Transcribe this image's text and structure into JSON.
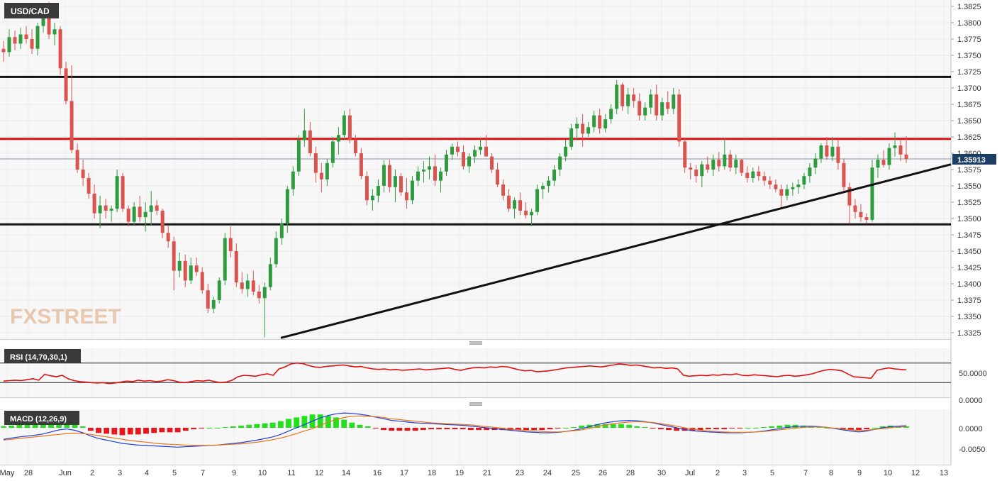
{
  "symbol": "USD/CAD",
  "watermark": "FXSTREET",
  "current_price": "1.35913",
  "colors": {
    "up": "#2e9c3e",
    "down": "#d9534f",
    "resistance": "#e01010",
    "level": "#111111",
    "rsi": "#e01010",
    "macd": "#1f3fdc",
    "signal": "#e8751a",
    "hist_pos": "#22e01a",
    "hist_neg": "#e8161b"
  },
  "rsi": {
    "label": "RSI (14,70,30,1)",
    "ticks": [
      "50.0000",
      "0.0000"
    ]
  },
  "macd": {
    "label": "MACD (12,26,9)",
    "ticks": [
      "0.0000",
      "-0.0050"
    ]
  },
  "chart_data": {
    "type": "candlestick",
    "title": "USD/CAD",
    "ylim": [
      1.3312,
      1.3835
    ],
    "y_ticks": [
      "1.3825",
      "1.3800",
      "1.3775",
      "1.3750",
      "1.3725",
      "1.3700",
      "1.3675",
      "1.3650",
      "1.3625",
      "1.3600",
      "1.3575",
      "1.3550",
      "1.3525",
      "1.3500",
      "1.3475",
      "1.3450",
      "1.3425",
      "1.3400",
      "1.3375",
      "1.3350",
      "1.3325"
    ],
    "x_ticks": [
      "May",
      "28",
      "Jun",
      "2",
      "3",
      "4",
      "5",
      "7",
      "9",
      "10",
      "11",
      "12",
      "14",
      "16",
      "17",
      "18",
      "19",
      "21",
      "23",
      "24",
      "25",
      "26",
      "28",
      "30",
      "Jul",
      "2",
      "3",
      "5",
      "7",
      "8",
      "9",
      "10",
      "12",
      "13"
    ],
    "horizontal_levels": [
      {
        "kind": "level",
        "value": 1.3717
      },
      {
        "kind": "resistance",
        "value": 1.3622
      },
      {
        "kind": "level",
        "value": 1.3491
      }
    ],
    "trendline": {
      "from": {
        "date": "10 Jun",
        "value": 1.3317
      },
      "to": {
        "date": "13 Jul",
        "value": 1.3583
      }
    },
    "candles": [
      [
        1.376,
        1.3772,
        1.374,
        1.3755
      ],
      [
        1.3755,
        1.379,
        1.3748,
        1.3778
      ],
      [
        1.3778,
        1.3788,
        1.3758,
        1.3768
      ],
      [
        1.3768,
        1.3792,
        1.376,
        1.3782
      ],
      [
        1.3782,
        1.3795,
        1.3768,
        1.3775
      ],
      [
        1.3775,
        1.379,
        1.3752,
        1.376
      ],
      [
        1.376,
        1.38,
        1.375,
        1.3795
      ],
      [
        1.3795,
        1.383,
        1.3785,
        1.3828
      ],
      [
        1.3828,
        1.3832,
        1.3775,
        1.3782
      ],
      [
        1.3782,
        1.38,
        1.3765,
        1.379
      ],
      [
        1.379,
        1.3795,
        1.372,
        1.373
      ],
      [
        1.373,
        1.374,
        1.3675,
        1.368
      ],
      [
        1.368,
        1.3735,
        1.36,
        1.3605
      ],
      [
        1.3605,
        1.3615,
        1.357,
        1.3575
      ],
      [
        1.3575,
        1.359,
        1.355,
        1.3562
      ],
      [
        1.3562,
        1.357,
        1.353,
        1.3538
      ],
      [
        1.3538,
        1.3552,
        1.35,
        1.3508
      ],
      [
        1.3508,
        1.3535,
        1.3485,
        1.352
      ],
      [
        1.352,
        1.353,
        1.35,
        1.3512
      ],
      [
        1.3512,
        1.352,
        1.3495,
        1.3515
      ],
      [
        1.3515,
        1.3575,
        1.351,
        1.3565
      ],
      [
        1.3565,
        1.357,
        1.351,
        1.3515
      ],
      [
        1.3515,
        1.352,
        1.3488,
        1.3495
      ],
      [
        1.3495,
        1.3525,
        1.349,
        1.3518
      ],
      [
        1.3518,
        1.3535,
        1.3495,
        1.3502
      ],
      [
        1.3502,
        1.3525,
        1.348,
        1.351
      ],
      [
        1.351,
        1.3542,
        1.349,
        1.352
      ],
      [
        1.352,
        1.3528,
        1.3505,
        1.3512
      ],
      [
        1.3512,
        1.3515,
        1.347,
        1.3478
      ],
      [
        1.3478,
        1.349,
        1.3455,
        1.3465
      ],
      [
        1.3465,
        1.3472,
        1.339,
        1.342
      ],
      [
        1.342,
        1.3448,
        1.341,
        1.3435
      ],
      [
        1.3435,
        1.3445,
        1.3395,
        1.3405
      ],
      [
        1.3405,
        1.344,
        1.34,
        1.3428
      ],
      [
        1.3428,
        1.344,
        1.3412,
        1.3418
      ],
      [
        1.3418,
        1.3425,
        1.3385,
        1.339
      ],
      [
        1.339,
        1.34,
        1.3355,
        1.3362
      ],
      [
        1.3362,
        1.338,
        1.3355,
        1.3375
      ],
      [
        1.3375,
        1.341,
        1.337,
        1.3405
      ],
      [
        1.3405,
        1.3478,
        1.3398,
        1.347
      ],
      [
        1.347,
        1.3488,
        1.344,
        1.345
      ],
      [
        1.345,
        1.3462,
        1.3395,
        1.3402
      ],
      [
        1.3402,
        1.3418,
        1.3385,
        1.3392
      ],
      [
        1.3392,
        1.3415,
        1.338,
        1.3405
      ],
      [
        1.3405,
        1.342,
        1.3382,
        1.3388
      ],
      [
        1.3388,
        1.3398,
        1.337,
        1.3378
      ],
      [
        1.3378,
        1.3402,
        1.3318,
        1.3395
      ],
      [
        1.3395,
        1.344,
        1.339,
        1.343
      ],
      [
        1.343,
        1.348,
        1.3425,
        1.347
      ],
      [
        1.347,
        1.35,
        1.346,
        1.3492
      ],
      [
        1.3492,
        1.355,
        1.3478,
        1.3545
      ],
      [
        1.3545,
        1.358,
        1.3535,
        1.3572
      ],
      [
        1.3572,
        1.3628,
        1.3565,
        1.362
      ],
      [
        1.362,
        1.3668,
        1.361,
        1.3635
      ],
      [
        1.3635,
        1.3648,
        1.3595,
        1.36
      ],
      [
        1.36,
        1.361,
        1.3555,
        1.357
      ],
      [
        1.357,
        1.3585,
        1.354,
        1.356
      ],
      [
        1.356,
        1.3592,
        1.355,
        1.3585
      ],
      [
        1.3585,
        1.3625,
        1.3578,
        1.3618
      ],
      [
        1.3618,
        1.364,
        1.3598,
        1.3628
      ],
      [
        1.3628,
        1.3665,
        1.362,
        1.3658
      ],
      [
        1.3658,
        1.3668,
        1.3615,
        1.362
      ],
      [
        1.362,
        1.3628,
        1.3595,
        1.36
      ],
      [
        1.36,
        1.3608,
        1.356,
        1.3565
      ],
      [
        1.3565,
        1.3572,
        1.352,
        1.3528
      ],
      [
        1.3528,
        1.3545,
        1.3512,
        1.3535
      ],
      [
        1.3535,
        1.356,
        1.3525,
        1.355
      ],
      [
        1.355,
        1.359,
        1.354,
        1.3582
      ],
      [
        1.3582,
        1.359,
        1.354,
        1.3548
      ],
      [
        1.3548,
        1.3575,
        1.3525,
        1.3565
      ],
      [
        1.3565,
        1.357,
        1.3535,
        1.354
      ],
      [
        1.354,
        1.3562,
        1.3515,
        1.3528
      ],
      [
        1.3528,
        1.3565,
        1.3522,
        1.3558
      ],
      [
        1.3558,
        1.358,
        1.355,
        1.3572
      ],
      [
        1.3572,
        1.3588,
        1.3555,
        1.3575
      ],
      [
        1.3575,
        1.3595,
        1.356,
        1.358
      ],
      [
        1.358,
        1.3598,
        1.355,
        1.3558
      ],
      [
        1.3558,
        1.3578,
        1.354,
        1.3572
      ],
      [
        1.3572,
        1.3605,
        1.3565,
        1.3598
      ],
      [
        1.3598,
        1.3615,
        1.359,
        1.361
      ],
      [
        1.361,
        1.3618,
        1.3595,
        1.3602
      ],
      [
        1.3602,
        1.3612,
        1.3575,
        1.358
      ],
      [
        1.358,
        1.36,
        1.357,
        1.3595
      ],
      [
        1.3595,
        1.3612,
        1.3585,
        1.3605
      ],
      [
        1.3605,
        1.3622,
        1.3598,
        1.361
      ],
      [
        1.361,
        1.3628,
        1.36,
        1.3595
      ],
      [
        1.3595,
        1.36,
        1.357,
        1.3575
      ],
      [
        1.3575,
        1.3585,
        1.3548,
        1.3552
      ],
      [
        1.3552,
        1.356,
        1.3528,
        1.3535
      ],
      [
        1.3535,
        1.3545,
        1.351,
        1.3515
      ],
      [
        1.3515,
        1.3532,
        1.35,
        1.3528
      ],
      [
        1.3528,
        1.354,
        1.3505,
        1.3512
      ],
      [
        1.3512,
        1.3525,
        1.35,
        1.3505
      ],
      [
        1.3505,
        1.3515,
        1.3488,
        1.351
      ],
      [
        1.351,
        1.3552,
        1.3505,
        1.3545
      ],
      [
        1.3545,
        1.3555,
        1.353,
        1.355
      ],
      [
        1.355,
        1.3565,
        1.354,
        1.3558
      ],
      [
        1.3558,
        1.3582,
        1.355,
        1.3575
      ],
      [
        1.3575,
        1.36,
        1.3565,
        1.3595
      ],
      [
        1.3595,
        1.362,
        1.3588,
        1.361
      ],
      [
        1.361,
        1.3645,
        1.3605,
        1.3638
      ],
      [
        1.3638,
        1.3655,
        1.362,
        1.3645
      ],
      [
        1.3645,
        1.366,
        1.361,
        1.363
      ],
      [
        1.363,
        1.3648,
        1.3625,
        1.364
      ],
      [
        1.364,
        1.3665,
        1.3632,
        1.3658
      ],
      [
        1.3658,
        1.3668,
        1.363,
        1.3638
      ],
      [
        1.3638,
        1.366,
        1.3632,
        1.3652
      ],
      [
        1.3652,
        1.3675,
        1.3645,
        1.3668
      ],
      [
        1.3668,
        1.3712,
        1.366,
        1.3705
      ],
      [
        1.3705,
        1.3708,
        1.3665,
        1.3672
      ],
      [
        1.3672,
        1.37,
        1.366,
        1.369
      ],
      [
        1.369,
        1.37,
        1.367,
        1.368
      ],
      [
        1.368,
        1.3692,
        1.365,
        1.3658
      ],
      [
        1.3658,
        1.3678,
        1.365,
        1.367
      ],
      [
        1.367,
        1.3698,
        1.366,
        1.369
      ],
      [
        1.369,
        1.3705,
        1.365,
        1.3658
      ],
      [
        1.3658,
        1.3685,
        1.365,
        1.3678
      ],
      [
        1.3678,
        1.3695,
        1.366,
        1.3668
      ],
      [
        1.3668,
        1.37,
        1.366,
        1.369
      ],
      [
        1.369,
        1.3698,
        1.361,
        1.3618
      ],
      [
        1.3618,
        1.3622,
        1.357,
        1.3578
      ],
      [
        1.3578,
        1.3585,
        1.356,
        1.3575
      ],
      [
        1.3575,
        1.3582,
        1.3555,
        1.3565
      ],
      [
        1.3565,
        1.3588,
        1.3548,
        1.3583
      ],
      [
        1.3583,
        1.3595,
        1.357,
        1.3575
      ],
      [
        1.3575,
        1.3598,
        1.3565,
        1.359
      ],
      [
        1.359,
        1.3602,
        1.3572,
        1.358
      ],
      [
        1.358,
        1.3622,
        1.3575,
        1.3598
      ],
      [
        1.3598,
        1.3605,
        1.3572,
        1.3578
      ],
      [
        1.3578,
        1.3598,
        1.3568,
        1.359
      ],
      [
        1.359,
        1.3592,
        1.3565,
        1.357
      ],
      [
        1.357,
        1.358,
        1.3555,
        1.3562
      ],
      [
        1.3562,
        1.3578,
        1.3555,
        1.3572
      ],
      [
        1.3572,
        1.358,
        1.3558,
        1.3565
      ],
      [
        1.3565,
        1.3572,
        1.355,
        1.3558
      ],
      [
        1.3558,
        1.3565,
        1.3545,
        1.3552
      ],
      [
        1.3552,
        1.356,
        1.354,
        1.3545
      ],
      [
        1.3545,
        1.3552,
        1.3518,
        1.3535
      ],
      [
        1.3535,
        1.3552,
        1.3528,
        1.3545
      ],
      [
        1.3545,
        1.3555,
        1.3535,
        1.3548
      ],
      [
        1.3548,
        1.356,
        1.3538,
        1.3552
      ],
      [
        1.3552,
        1.357,
        1.3545,
        1.3565
      ],
      [
        1.3565,
        1.3585,
        1.3555,
        1.3578
      ],
      [
        1.3578,
        1.36,
        1.3568,
        1.3592
      ],
      [
        1.3592,
        1.3615,
        1.3585,
        1.3612
      ],
      [
        1.3612,
        1.3625,
        1.359,
        1.3595
      ],
      [
        1.3595,
        1.3625,
        1.3588,
        1.361
      ],
      [
        1.361,
        1.362,
        1.3575,
        1.3585
      ],
      [
        1.3585,
        1.3592,
        1.354,
        1.3548
      ],
      [
        1.3548,
        1.3555,
        1.3492,
        1.352
      ],
      [
        1.352,
        1.353,
        1.35,
        1.351
      ],
      [
        1.351,
        1.3522,
        1.3495,
        1.3502
      ],
      [
        1.3502,
        1.3508,
        1.3492,
        1.3498
      ],
      [
        1.3498,
        1.359,
        1.3495,
        1.3578
      ],
      [
        1.3578,
        1.3598,
        1.3562,
        1.359
      ],
      [
        1.359,
        1.3605,
        1.3578,
        1.3582
      ],
      [
        1.3582,
        1.3615,
        1.3575,
        1.3608
      ],
      [
        1.3608,
        1.3632,
        1.3595,
        1.3612
      ],
      [
        1.3612,
        1.362,
        1.3588,
        1.3598
      ],
      [
        1.3598,
        1.3626,
        1.3585,
        1.3591
      ]
    ],
    "rsi_values": [
      33,
      34,
      35,
      34,
      36,
      38,
      35,
      47,
      44,
      42,
      45,
      38,
      34,
      32,
      31,
      30,
      29,
      30,
      28,
      29,
      31,
      33,
      32,
      35,
      33,
      34,
      32,
      33,
      36,
      34,
      31,
      30,
      32,
      34,
      33,
      35,
      32,
      30,
      31,
      35,
      42,
      45,
      44,
      43,
      46,
      48,
      45,
      58,
      62,
      68,
      70,
      69,
      65,
      62,
      61,
      63,
      64,
      65,
      66,
      64,
      62,
      63,
      60,
      58,
      57,
      58,
      56,
      57,
      55,
      56,
      57,
      58,
      56,
      57,
      58,
      59,
      60,
      57,
      55,
      58,
      60,
      61,
      60,
      62,
      61,
      63,
      62,
      59,
      56,
      54,
      55,
      52,
      53,
      54,
      56,
      58,
      60,
      61,
      62,
      63,
      64,
      63,
      62,
      64,
      66,
      68,
      67,
      65,
      66,
      64,
      62,
      60,
      61,
      59,
      60,
      58,
      45,
      43,
      44,
      45,
      44,
      46,
      45,
      47,
      46,
      48,
      45,
      44,
      46,
      45,
      44,
      43,
      42,
      44,
      45,
      43,
      44,
      46,
      48,
      52,
      55,
      57,
      56,
      54,
      48,
      42,
      41,
      40,
      39,
      55,
      58,
      60,
      58,
      57,
      56
    ],
    "macd_line": [
      -0.0028,
      -0.0025,
      -0.0022,
      -0.002,
      -0.0018,
      -0.0015,
      -0.001,
      -0.0005,
      -0.0003,
      -0.0006,
      -0.0012,
      -0.002,
      -0.0026,
      -0.003,
      -0.0034,
      -0.0038,
      -0.004,
      -0.0042,
      -0.0043,
      -0.0044,
      -0.0045,
      -0.0046,
      -0.0047,
      -0.0046,
      -0.0045,
      -0.0044,
      -0.0043,
      -0.0042,
      -0.004,
      -0.0038,
      -0.0036,
      -0.0033,
      -0.003,
      -0.0026,
      -0.0022,
      -0.0016,
      -0.0008,
      0.0,
      0.0008,
      0.0016,
      0.0024,
      0.003,
      0.0034,
      0.0036,
      0.0035,
      0.0033,
      0.003,
      0.0026,
      0.0022,
      0.0018,
      0.0016,
      0.0014,
      0.0012,
      0.0011,
      0.001,
      0.0009,
      0.0008,
      0.0007,
      0.0006,
      0.0004,
      0.0002,
      0.0,
      -0.0002,
      -0.0004,
      -0.0006,
      -0.0008,
      -0.001,
      -0.0011,
      -0.0012,
      -0.0012,
      -0.0011,
      -0.0009,
      -0.0006,
      -0.0002,
      0.0003,
      0.0008,
      0.0012,
      0.0015,
      0.0017,
      0.0018,
      0.0017,
      0.0015,
      0.0012,
      0.0008,
      0.0004,
      0.0,
      -0.0004,
      -0.0007,
      -0.0009,
      -0.001,
      -0.0011,
      -0.0012,
      -0.0012,
      -0.0012,
      -0.0011,
      -0.001,
      -0.0008,
      -0.0005,
      -0.0002,
      0.0001,
      0.0003,
      0.0004,
      0.0004,
      0.0003,
      0.0001,
      -0.0002,
      -0.0005,
      -0.0008,
      -0.001,
      -0.0008,
      -0.0004,
      0.0,
      0.0003,
      0.0004,
      0.0005
    ],
    "macd_signal": [
      -0.003,
      -0.0028,
      -0.0026,
      -0.0024,
      -0.0022,
      -0.002,
      -0.0018,
      -0.0016,
      -0.0014,
      -0.0013,
      -0.0014,
      -0.0016,
      -0.0019,
      -0.0022,
      -0.0025,
      -0.0028,
      -0.0031,
      -0.0033,
      -0.0035,
      -0.0037,
      -0.0039,
      -0.004,
      -0.0041,
      -0.0042,
      -0.0043,
      -0.0043,
      -0.0043,
      -0.0042,
      -0.0041,
      -0.004,
      -0.0039,
      -0.0037,
      -0.0035,
      -0.0032,
      -0.0029,
      -0.0025,
      -0.002,
      -0.0014,
      -0.0008,
      -0.0002,
      0.0006,
      0.0014,
      0.002,
      0.0025,
      0.0028,
      0.0029,
      0.0028,
      0.0027,
      0.0025,
      0.0022,
      0.002,
      0.0018,
      0.0016,
      0.0014,
      0.0012,
      0.0011,
      0.001,
      0.0009,
      0.0008,
      0.0007,
      0.0005,
      0.0003,
      0.0001,
      -0.0001,
      -0.0003,
      -0.0005,
      -0.0007,
      -0.0008,
      -0.0009,
      -0.001,
      -0.001,
      -0.0009,
      -0.0007,
      -0.0005,
      -0.0001,
      0.0003,
      0.0007,
      0.001,
      0.0012,
      0.0014,
      0.0015,
      0.0014,
      0.0013,
      0.001,
      0.0007,
      0.0004,
      0.0,
      -0.0003,
      -0.0006,
      -0.0008,
      -0.0009,
      -0.001,
      -0.0011,
      -0.0011,
      -0.0011,
      -0.001,
      -0.0009,
      -0.0007,
      -0.0005,
      -0.0003,
      -0.0001,
      0.0001,
      0.0002,
      0.0002,
      0.0001,
      -0.0001,
      -0.0003,
      -0.0005,
      -0.0007,
      -0.0006,
      -0.0004,
      -0.0002,
      0.0,
      0.0002,
      0.0003
    ]
  }
}
